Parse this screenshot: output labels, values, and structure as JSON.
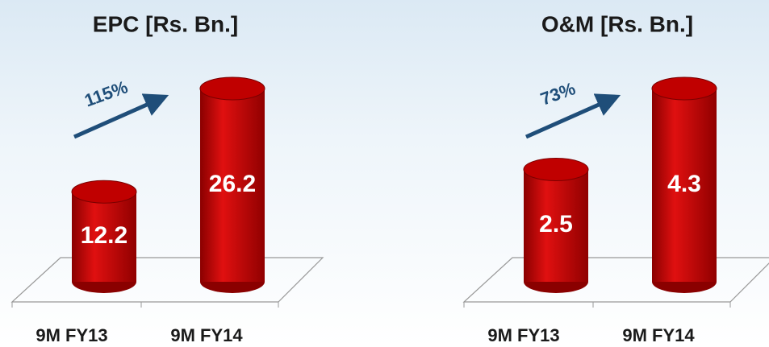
{
  "chart_data": [
    {
      "type": "bar",
      "title": "EPC [Rs. Bn.]",
      "annotation": "115%",
      "categories": [
        "9M FY13",
        "9M FY14"
      ],
      "values": [
        12.2,
        26.2
      ],
      "color": "#c00000"
    },
    {
      "type": "bar",
      "title": "O&M [Rs. Bn.]",
      "annotation": "73%",
      "categories": [
        "9M FY13",
        "9M FY14"
      ],
      "values": [
        2.5,
        4.3
      ],
      "color": "#c00000"
    }
  ]
}
